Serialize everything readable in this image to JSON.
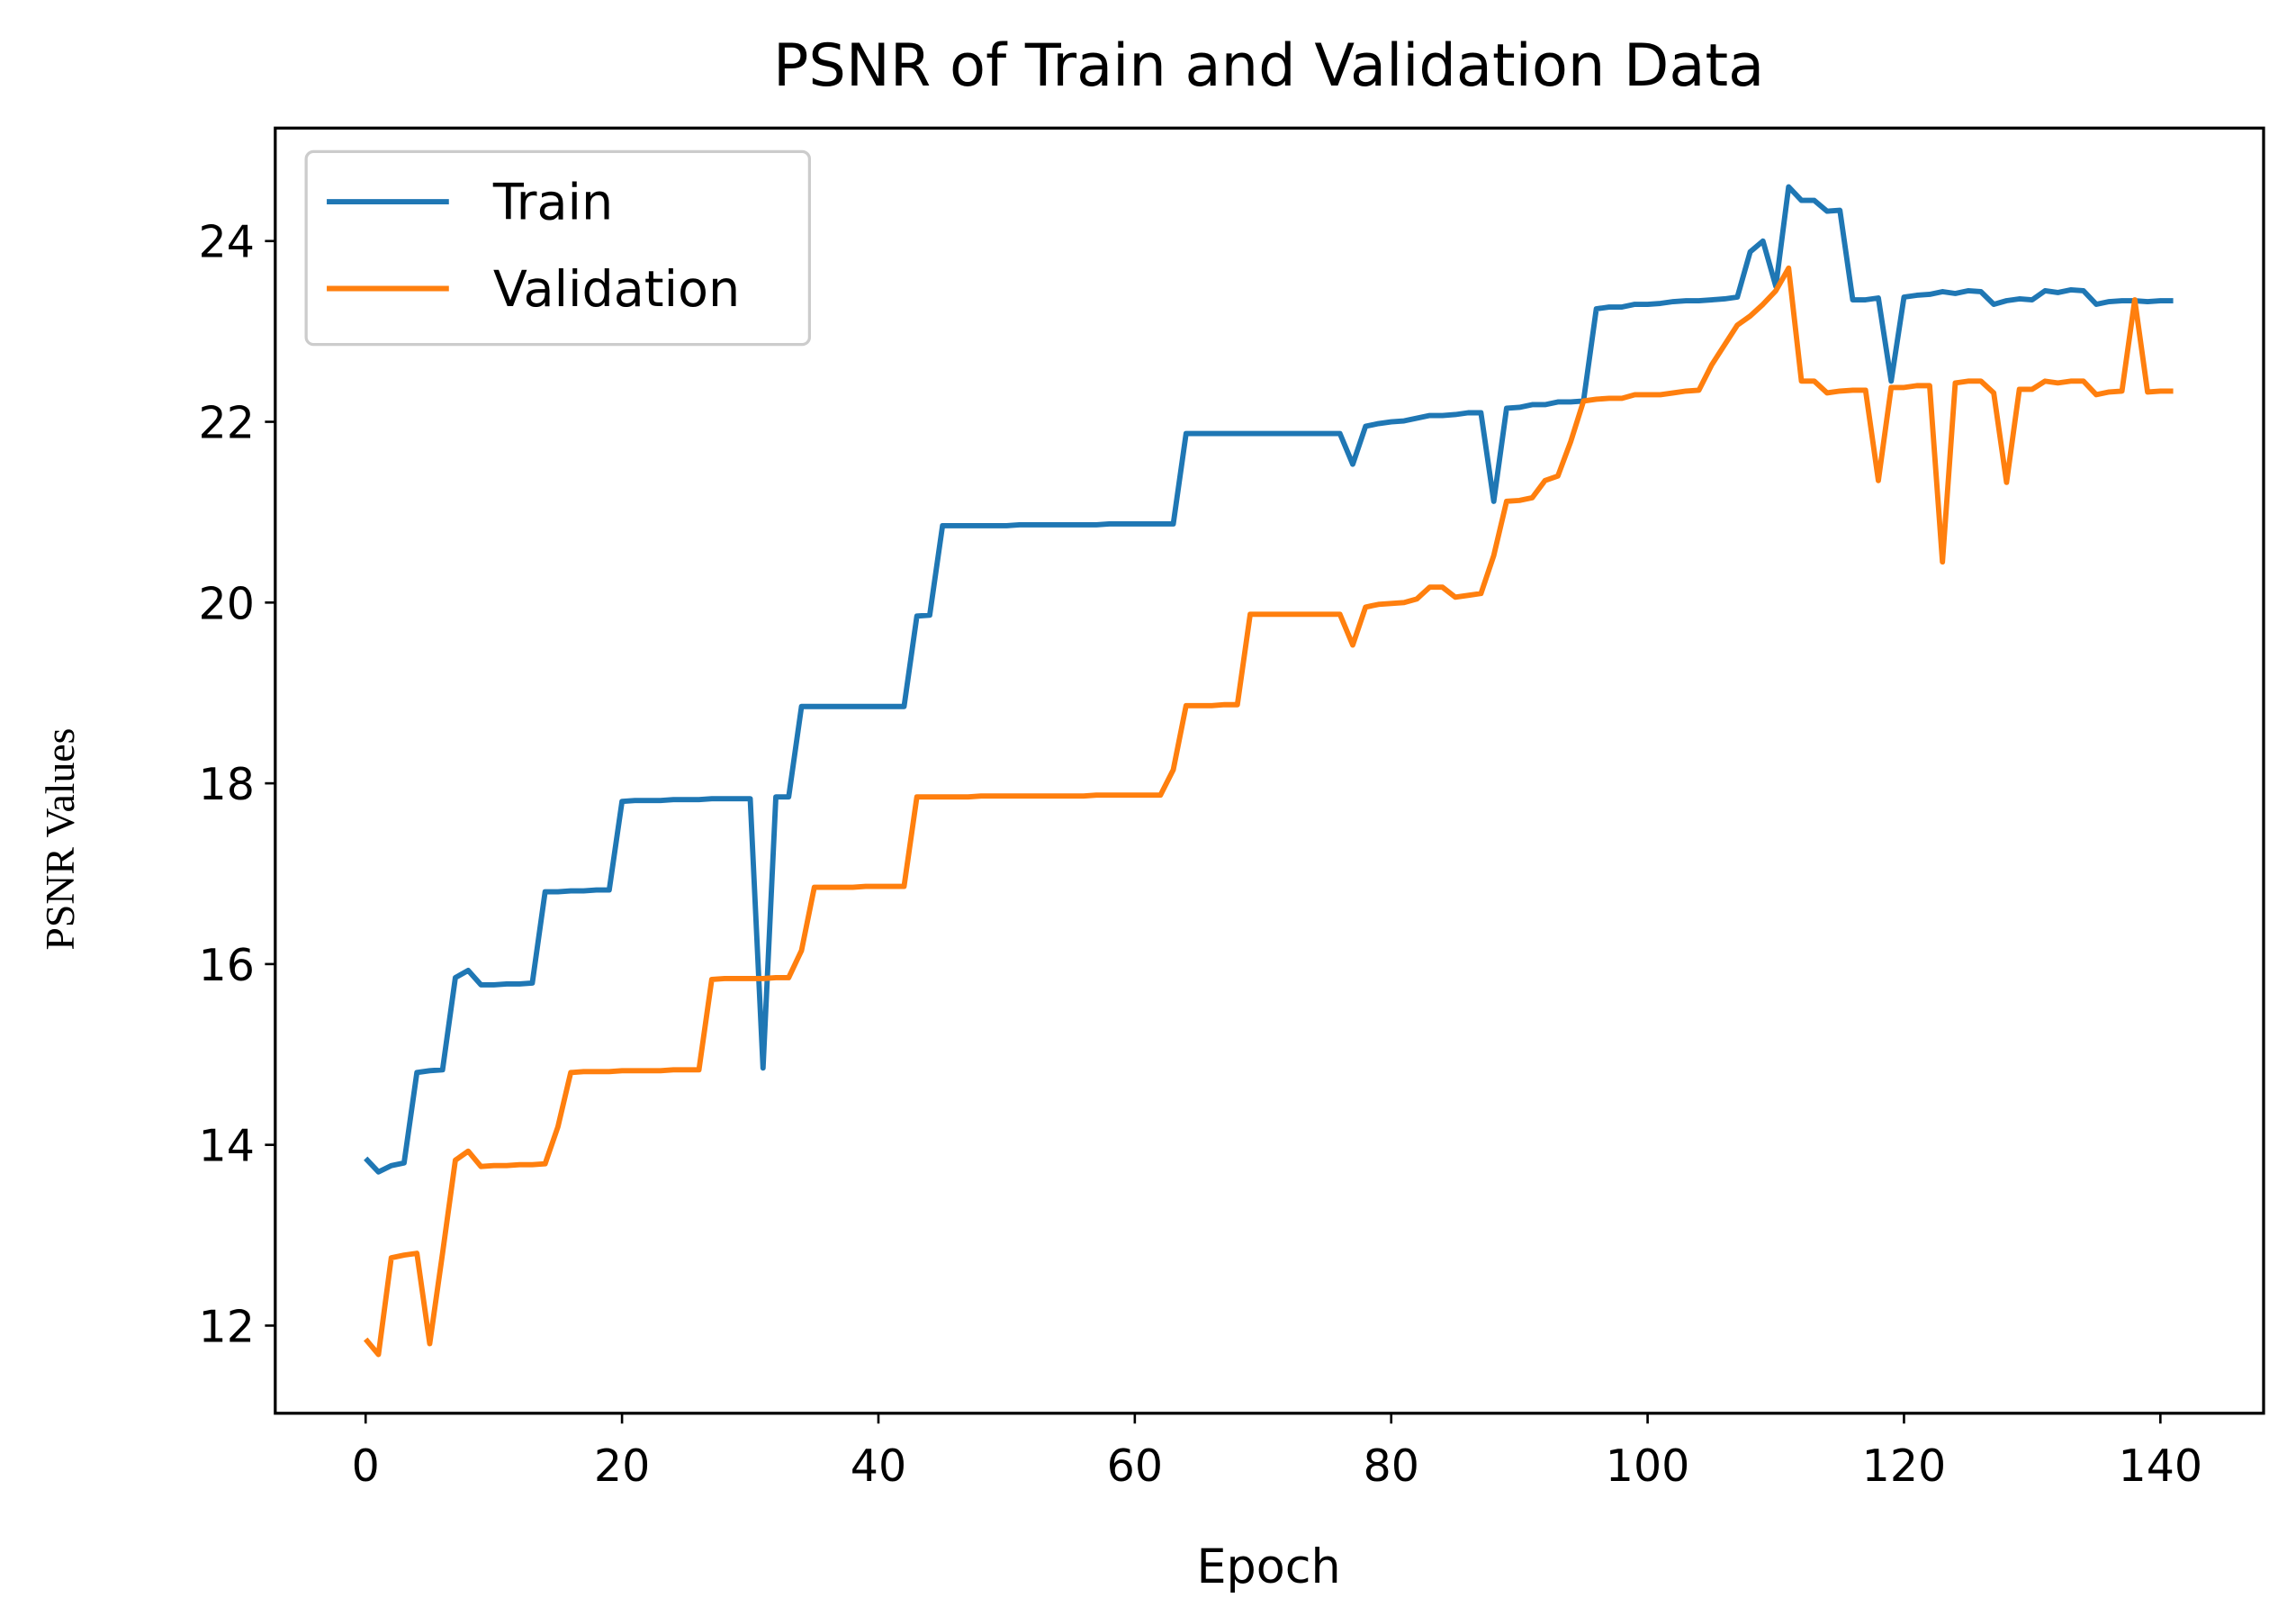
{
  "chart_data": {
    "type": "line",
    "title": "PSNR of Train and Validation Data",
    "xlabel": "Epoch",
    "ylabel": "PSNR Values",
    "x": [
      0,
      1,
      2,
      3,
      4,
      5,
      6,
      7,
      8,
      9,
      10,
      11,
      12,
      13,
      14,
      15,
      16,
      17,
      18,
      19,
      20,
      21,
      22,
      23,
      24,
      25,
      26,
      27,
      28,
      29,
      30,
      31,
      32,
      33,
      34,
      35,
      36,
      37,
      38,
      39,
      40,
      41,
      42,
      43,
      44,
      45,
      46,
      47,
      48,
      49,
      50,
      51,
      52,
      53,
      54,
      55,
      56,
      57,
      58,
      59,
      60,
      61,
      62,
      63,
      64,
      65,
      66,
      67,
      68,
      69,
      70,
      71,
      72,
      73,
      74,
      75,
      76,
      77,
      78,
      79,
      80,
      81,
      82,
      83,
      84,
      85,
      86,
      87,
      88,
      89,
      90,
      91,
      92,
      93,
      94,
      95,
      96,
      97,
      98,
      99,
      100,
      101,
      102,
      103,
      104,
      105,
      106,
      107,
      108,
      109,
      110,
      111,
      112,
      113,
      114,
      115,
      116,
      117,
      118,
      119,
      120,
      121,
      122,
      123,
      124,
      125,
      126,
      127,
      128,
      129,
      130,
      131,
      132,
      133,
      134,
      135,
      136,
      137,
      138,
      139,
      140,
      141
    ],
    "series": [
      {
        "name": "Train",
        "color": "#1f77b4",
        "values": [
          13.85,
          13.7,
          13.77,
          13.8,
          14.8,
          14.82,
          14.83,
          15.85,
          15.93,
          15.77,
          15.77,
          15.78,
          15.78,
          15.79,
          16.8,
          16.8,
          16.81,
          16.81,
          16.82,
          16.82,
          17.8,
          17.81,
          17.81,
          17.81,
          17.82,
          17.82,
          17.82,
          17.83,
          17.83,
          17.83,
          17.83,
          14.85,
          17.85,
          17.85,
          18.85,
          18.85,
          18.85,
          18.85,
          18.85,
          18.85,
          18.85,
          18.85,
          18.85,
          19.85,
          19.86,
          20.85,
          20.85,
          20.85,
          20.85,
          20.85,
          20.85,
          20.86,
          20.86,
          20.86,
          20.86,
          20.86,
          20.86,
          20.86,
          20.87,
          20.87,
          20.87,
          20.87,
          20.87,
          20.87,
          21.87,
          21.87,
          21.87,
          21.87,
          21.87,
          21.87,
          21.87,
          21.87,
          21.87,
          21.87,
          21.87,
          21.87,
          21.87,
          21.53,
          21.95,
          21.98,
          22.0,
          22.01,
          22.04,
          22.07,
          22.07,
          22.08,
          22.1,
          22.1,
          21.12,
          22.15,
          22.16,
          22.19,
          22.19,
          22.22,
          22.22,
          22.23,
          23.25,
          23.27,
          23.27,
          23.3,
          23.3,
          23.31,
          23.33,
          23.34,
          23.34,
          23.35,
          23.36,
          23.38,
          23.88,
          24.0,
          23.5,
          24.6,
          24.45,
          24.45,
          24.33,
          24.34,
          23.35,
          23.35,
          23.37,
          22.45,
          23.38,
          23.4,
          23.41,
          23.44,
          23.42,
          23.45,
          23.44,
          23.3,
          23.34,
          23.36,
          23.35,
          23.45,
          23.43,
          23.46,
          23.45,
          23.3,
          23.33,
          23.34,
          23.34,
          23.33,
          23.34,
          23.34
        ]
      },
      {
        "name": "Validation",
        "color": "#ff7f0e",
        "values": [
          11.85,
          11.68,
          12.75,
          12.78,
          12.8,
          11.8,
          12.8,
          13.83,
          13.93,
          13.76,
          13.77,
          13.77,
          13.78,
          13.78,
          13.79,
          14.2,
          14.8,
          14.81,
          14.81,
          14.81,
          14.82,
          14.82,
          14.82,
          14.82,
          14.83,
          14.83,
          14.83,
          15.83,
          15.84,
          15.84,
          15.84,
          15.84,
          15.85,
          15.85,
          16.15,
          16.85,
          16.85,
          16.85,
          16.85,
          16.86,
          16.86,
          16.86,
          16.86,
          17.85,
          17.85,
          17.85,
          17.85,
          17.85,
          17.86,
          17.86,
          17.86,
          17.86,
          17.86,
          17.86,
          17.86,
          17.86,
          17.86,
          17.87,
          17.87,
          17.87,
          17.87,
          17.87,
          17.87,
          18.15,
          18.86,
          18.86,
          18.86,
          18.87,
          18.87,
          19.87,
          19.87,
          19.87,
          19.87,
          19.87,
          19.87,
          19.87,
          19.87,
          19.53,
          19.95,
          19.98,
          19.99,
          20.0,
          20.04,
          20.17,
          20.17,
          20.06,
          20.08,
          20.1,
          20.52,
          21.12,
          21.13,
          21.16,
          21.35,
          21.4,
          21.78,
          22.23,
          22.25,
          22.26,
          22.26,
          22.3,
          22.3,
          22.3,
          22.32,
          22.34,
          22.35,
          22.63,
          22.85,
          23.07,
          23.17,
          23.3,
          23.45,
          23.7,
          22.45,
          22.45,
          22.32,
          22.34,
          22.35,
          22.35,
          21.35,
          22.38,
          22.38,
          22.4,
          22.4,
          20.45,
          22.43,
          22.45,
          22.45,
          22.32,
          21.33,
          22.36,
          22.36,
          22.45,
          22.43,
          22.45,
          22.45,
          22.3,
          22.33,
          22.34,
          23.35,
          22.33,
          22.34,
          22.34
        ]
      }
    ],
    "xlim": [
      -7.05,
      148.05
    ],
    "xticks": [
      0,
      20,
      40,
      60,
      80,
      100,
      120,
      140
    ],
    "ylim": [
      11.03,
      25.25
    ],
    "yticks": [
      12,
      14,
      16,
      18,
      20,
      22,
      24
    ],
    "legend": "upper left"
  }
}
